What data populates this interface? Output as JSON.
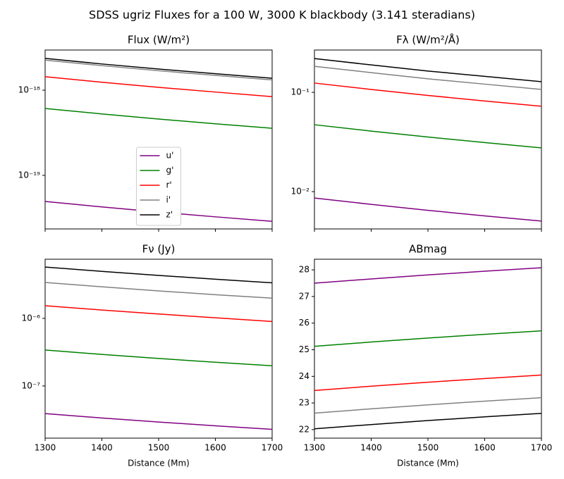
{
  "title": "SDSS ugriz Fluxes for a 100 W, 3000 K blackbody (3.141 steradians)",
  "chart_data": [
    {
      "type": "line",
      "title": "Flux (W/m²)",
      "yscale": "log",
      "legend": "center",
      "x": [
        1300,
        1400,
        1500,
        1600,
        1700
      ],
      "xlim": [
        1300,
        1700
      ],
      "xticks": [
        1300,
        1400,
        1500,
        1600,
        1700
      ],
      "ylim": [
        2.35e-20,
        2.96e-18
      ],
      "yticks": [
        {
          "value": 1e-19,
          "label": "10⁻¹⁹"
        },
        {
          "value": 1e-18,
          "label": "10⁻¹⁸"
        }
      ],
      "series": [
        {
          "name": "u'",
          "color": "#800080",
          "values": [
            4.94e-20,
            4.26e-20,
            3.71e-20,
            3.26e-20,
            2.89e-20
          ]
        },
        {
          "name": "g'",
          "color": "#008000",
          "values": [
            6.1e-19,
            5.26e-19,
            4.58e-19,
            4.03e-19,
            3.57e-19
          ]
        },
        {
          "name": "r'",
          "color": "#ff0000",
          "values": [
            1.44e-18,
            1.24e-18,
            1.08e-18,
            9.5e-19,
            8.4e-19
          ]
        },
        {
          "name": "i'",
          "color": "#808080",
          "values": [
            2.25e-18,
            1.94e-18,
            1.69e-18,
            1.49e-18,
            1.32e-18
          ]
        },
        {
          "name": "z'",
          "color": "#000000",
          "values": [
            2.36e-18,
            2.03e-18,
            1.77e-18,
            1.56e-18,
            1.38e-18
          ]
        }
      ]
    },
    {
      "type": "line",
      "title": "Fλ (W/m²/Å)",
      "yscale": "log",
      "x": [
        1300,
        1400,
        1500,
        1600,
        1700
      ],
      "xlim": [
        1300,
        1700
      ],
      "xticks": [
        1300,
        1400,
        1500,
        1600,
        1700
      ],
      "ylim": [
        0.00421,
        0.267
      ],
      "yticks": [
        {
          "value": 0.01,
          "label": "10⁻²"
        },
        {
          "value": 0.1,
          "label": "10⁻¹"
        }
      ],
      "series": [
        {
          "color": "#800080",
          "values": [
            0.00863,
            0.00744,
            0.00648,
            0.0057,
            0.00505
          ]
        },
        {
          "color": "#008000",
          "values": [
            0.0472,
            0.0407,
            0.0355,
            0.0312,
            0.0276
          ]
        },
        {
          "color": "#ff0000",
          "values": [
            0.124,
            0.107,
            0.0931,
            0.0819,
            0.0725
          ]
        },
        {
          "color": "#808080",
          "values": [
            0.183,
            0.158,
            0.137,
            0.121,
            0.107
          ]
        },
        {
          "color": "#000000",
          "values": [
            0.219,
            0.189,
            0.164,
            0.145,
            0.128
          ]
        }
      ]
    },
    {
      "type": "line",
      "title": "Fν (Jy)",
      "yscale": "log",
      "xlabel": "Distance (Mm)",
      "x": [
        1300,
        1400,
        1500,
        1600,
        1700
      ],
      "xlim": [
        1300,
        1700
      ],
      "xticks": [
        1300,
        1400,
        1500,
        1600,
        1700
      ],
      "ylim": [
        1.69e-08,
        7.5e-06
      ],
      "yticks": [
        {
          "value": 1e-07,
          "label": "10⁻⁷"
        },
        {
          "value": 1e-06,
          "label": "10⁻⁶"
        }
      ],
      "series": [
        {
          "color": "#800080",
          "values": [
            3.9e-08,
            3.36e-08,
            2.93e-08,
            2.57e-08,
            2.28e-08
          ]
        },
        {
          "color": "#008000",
          "values": [
            3.4e-07,
            2.93e-07,
            2.55e-07,
            2.24e-07,
            1.99e-07
          ]
        },
        {
          "color": "#ff0000",
          "values": [
            1.54e-06,
            1.33e-06,
            1.16e-06,
            1.02e-06,
            9e-07
          ]
        },
        {
          "color": "#808080",
          "values": [
            3.4e-06,
            2.93e-06,
            2.55e-06,
            2.24e-06,
            1.99e-06
          ]
        },
        {
          "color": "#000000",
          "values": [
            5.75e-06,
            4.96e-06,
            4.32e-06,
            3.8e-06,
            3.36e-06
          ]
        }
      ]
    },
    {
      "type": "line",
      "title": "ABmag",
      "xlabel": "Distance (Mm)",
      "x": [
        1300,
        1400,
        1500,
        1600,
        1700
      ],
      "xlim": [
        1300,
        1700
      ],
      "xticks": [
        1300,
        1400,
        1500,
        1600,
        1700
      ],
      "ylim": [
        21.68,
        28.4
      ],
      "yticks": [
        22,
        23,
        24,
        25,
        26,
        27,
        28
      ],
      "series": [
        {
          "color": "#800080",
          "values": [
            27.5,
            27.66,
            27.81,
            27.95,
            28.08
          ]
        },
        {
          "color": "#008000",
          "values": [
            25.13,
            25.29,
            25.44,
            25.58,
            25.71
          ]
        },
        {
          "color": "#ff0000",
          "values": [
            23.47,
            23.63,
            23.78,
            23.92,
            24.05
          ]
        },
        {
          "color": "#808080",
          "values": [
            22.62,
            22.78,
            22.93,
            23.07,
            23.2
          ]
        },
        {
          "color": "#000000",
          "values": [
            22.03,
            22.19,
            22.34,
            22.48,
            22.61
          ]
        }
      ]
    }
  ]
}
